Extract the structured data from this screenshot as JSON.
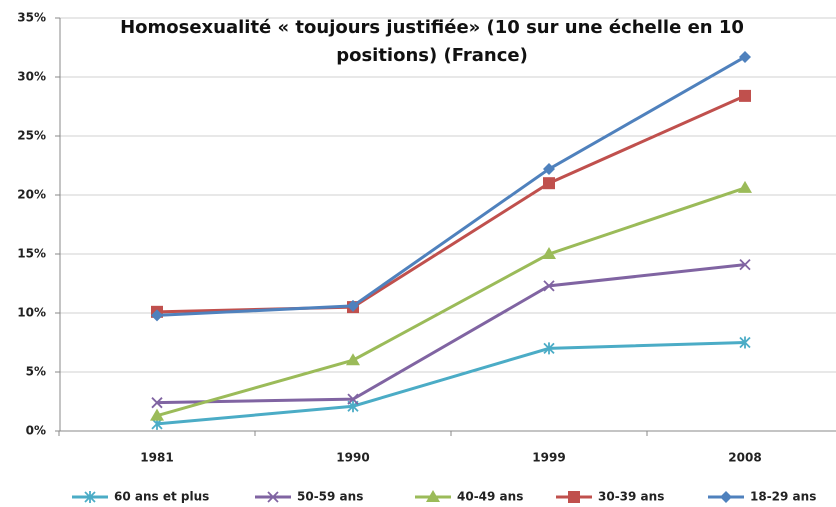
{
  "chart_data": {
    "type": "line",
    "title": "Homosexualité « toujours justifiée» (10 sur une échelle en 10 positions) (France)",
    "categories": [
      "1981",
      "1990",
      "1999",
      "2008"
    ],
    "series": [
      {
        "name": "60 ans et plus",
        "color": "#4bacc6",
        "marker": "star",
        "values": [
          0.6,
          2.1,
          7.0,
          7.5
        ]
      },
      {
        "name": "50-59 ans",
        "color": "#8064a2",
        "marker": "x",
        "values": [
          2.4,
          2.7,
          12.3,
          14.1
        ]
      },
      {
        "name": "40-49 ans",
        "color": "#9bbb59",
        "marker": "triangle",
        "values": [
          1.3,
          6.0,
          15.0,
          20.6
        ]
      },
      {
        "name": "30-39 ans",
        "color": "#c0504d",
        "marker": "square",
        "values": [
          10.1,
          10.5,
          21.0,
          28.4
        ]
      },
      {
        "name": "18-29 ans",
        "color": "#4f81bd",
        "marker": "diamond",
        "values": [
          9.8,
          10.6,
          22.2,
          31.7
        ]
      }
    ],
    "ylim": [
      0,
      35
    ],
    "yticks": [
      {
        "value": 0,
        "label": "0%"
      },
      {
        "value": 5,
        "label": "5%"
      },
      {
        "value": 10,
        "label": "10%"
      },
      {
        "value": 15,
        "label": "15%"
      },
      {
        "value": 20,
        "label": "20%"
      },
      {
        "value": 25,
        "label": "25%"
      },
      {
        "value": 30,
        "label": "30%"
      },
      {
        "value": 35,
        "label": "35%"
      }
    ],
    "grid": true,
    "legend": "bottom"
  }
}
